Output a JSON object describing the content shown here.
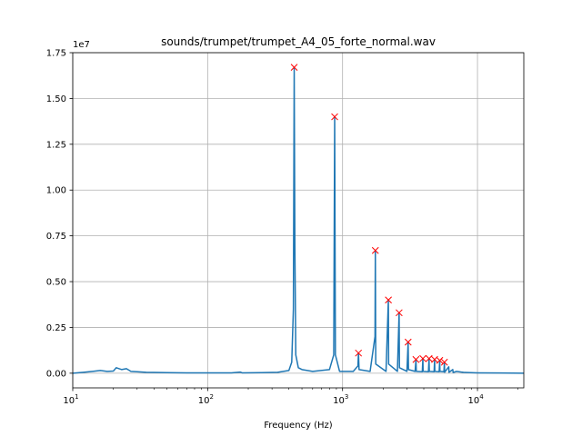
{
  "chart_data": {
    "type": "line",
    "title": "sounds/trumpet/trumpet_A4_05_forte_normal.wav",
    "xlabel": "Frequency (Hz)",
    "ylabel": "",
    "x_scale": "log",
    "xlim": [
      10,
      22050
    ],
    "ylim": [
      -0.08,
      1.75
    ],
    "y_offset_label": "1e7",
    "grid": true,
    "x_ticks": [
      {
        "value": 10,
        "base": "10",
        "exp": "1"
      },
      {
        "value": 100,
        "base": "10",
        "exp": "2"
      },
      {
        "value": 1000,
        "base": "10",
        "exp": "3"
      },
      {
        "value": 10000,
        "base": "10",
        "exp": "4"
      }
    ],
    "y_ticks": [
      {
        "value": 0.0,
        "label": "0.00"
      },
      {
        "value": 0.25,
        "label": "0.25"
      },
      {
        "value": 0.5,
        "label": "0.50"
      },
      {
        "value": 0.75,
        "label": "0.75"
      },
      {
        "value": 1.0,
        "label": "1.00"
      },
      {
        "value": 1.25,
        "label": "1.25"
      },
      {
        "value": 1.5,
        "label": "1.50"
      },
      {
        "value": 1.75,
        "label": "1.75"
      }
    ],
    "series": [
      {
        "color": "#1f77b4",
        "type": "line",
        "points": [
          [
            10,
            0.0
          ],
          [
            12,
            0.005
          ],
          [
            14,
            0.01
          ],
          [
            16,
            0.015
          ],
          [
            18,
            0.01
          ],
          [
            20,
            0.012
          ],
          [
            21,
            0.03
          ],
          [
            23,
            0.02
          ],
          [
            25,
            0.025
          ],
          [
            27,
            0.01
          ],
          [
            30,
            0.008
          ],
          [
            35,
            0.005
          ],
          [
            40,
            0.004
          ],
          [
            50,
            0.003
          ],
          [
            70,
            0.002
          ],
          [
            100,
            0.002
          ],
          [
            150,
            0.002
          ],
          [
            175,
            0.006
          ],
          [
            180,
            0.002
          ],
          [
            250,
            0.003
          ],
          [
            330,
            0.005
          ],
          [
            400,
            0.015
          ],
          [
            420,
            0.06
          ],
          [
            432,
            0.35
          ],
          [
            438,
            1.67
          ],
          [
            443,
            0.7
          ],
          [
            450,
            0.1
          ],
          [
            470,
            0.03
          ],
          [
            500,
            0.02
          ],
          [
            600,
            0.01
          ],
          [
            800,
            0.02
          ],
          [
            860,
            0.1
          ],
          [
            874,
            1.4
          ],
          [
            885,
            0.1
          ],
          [
            950,
            0.01
          ],
          [
            1200,
            0.01
          ],
          [
            1300,
            0.04
          ],
          [
            1312,
            0.11
          ],
          [
            1325,
            0.02
          ],
          [
            1600,
            0.01
          ],
          [
            1740,
            0.2
          ],
          [
            1750,
            0.67
          ],
          [
            1762,
            0.05
          ],
          [
            2100,
            0.01
          ],
          [
            2185,
            0.4
          ],
          [
            2195,
            0.05
          ],
          [
            2550,
            0.01
          ],
          [
            2625,
            0.33
          ],
          [
            2640,
            0.03
          ],
          [
            3000,
            0.01
          ],
          [
            3062,
            0.17
          ],
          [
            3080,
            0.02
          ],
          [
            3450,
            0.01
          ],
          [
            3500,
            0.075
          ],
          [
            3520,
            0.01
          ],
          [
            3900,
            0.008
          ],
          [
            3937,
            0.08
          ],
          [
            3955,
            0.01
          ],
          [
            4330,
            0.008
          ],
          [
            4375,
            0.08
          ],
          [
            4395,
            0.01
          ],
          [
            4770,
            0.008
          ],
          [
            4812,
            0.075
          ],
          [
            4830,
            0.01
          ],
          [
            5200,
            0.008
          ],
          [
            5250,
            0.07
          ],
          [
            5270,
            0.01
          ],
          [
            5640,
            0.008
          ],
          [
            5687,
            0.06
          ],
          [
            5710,
            0.005
          ],
          [
            6125,
            0.035
          ],
          [
            6150,
            0.005
          ],
          [
            6560,
            0.02
          ],
          [
            6600,
            0.004
          ],
          [
            7000,
            0.01
          ],
          [
            8000,
            0.004
          ],
          [
            10000,
            0.002
          ],
          [
            15000,
            0.001
          ],
          [
            22050,
            0.0
          ]
        ]
      }
    ],
    "peaks": {
      "marker": "x",
      "color": "#ff0000",
      "points": [
        [
          438,
          1.67
        ],
        [
          874,
          1.4
        ],
        [
          1312,
          0.11
        ],
        [
          1750,
          0.67
        ],
        [
          2187,
          0.4
        ],
        [
          2625,
          0.33
        ],
        [
          3062,
          0.17
        ],
        [
          3500,
          0.075
        ],
        [
          3937,
          0.08
        ],
        [
          4375,
          0.08
        ],
        [
          4812,
          0.075
        ],
        [
          5250,
          0.07
        ],
        [
          5687,
          0.06
        ]
      ]
    }
  }
}
